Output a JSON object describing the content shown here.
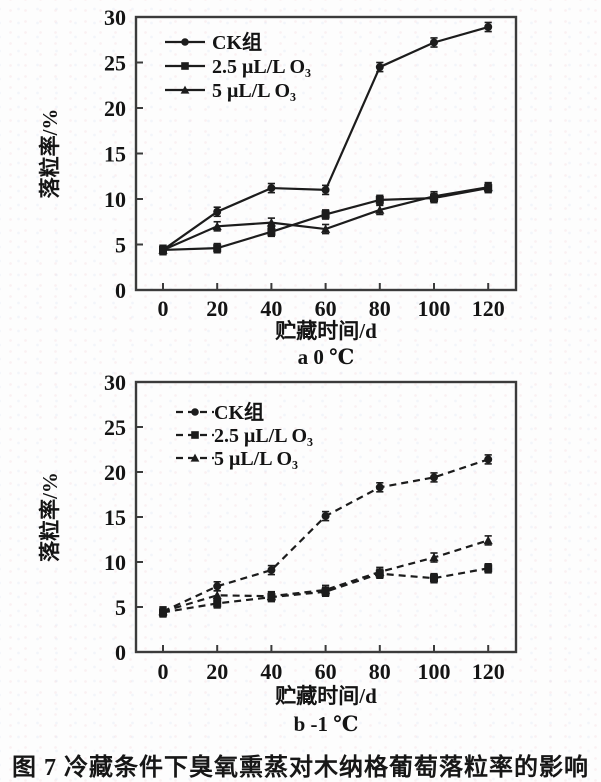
{
  "figure": {
    "caption": "图 7  冷藏条件下臭氧熏蒸对木纳格葡萄落粒率的影响"
  },
  "chart_data": [
    {
      "type": "line",
      "subtitle": "a 0 ℃",
      "xlabel": "贮藏时间/d",
      "ylabel": "落粒率/%",
      "x": [
        0,
        20,
        40,
        60,
        80,
        100,
        120
      ],
      "xticks": [
        0,
        20,
        40,
        60,
        80,
        100,
        120
      ],
      "yticks": [
        0,
        5,
        10,
        15,
        20,
        25,
        30
      ],
      "ylim": [
        0,
        30
      ],
      "grid": false,
      "line_style": "solid",
      "line_color": "#1c1c1c",
      "legend_position": "upper-left-inside",
      "series": [
        {
          "name": "CK组",
          "marker": "circle",
          "values": [
            4.4,
            8.6,
            11.2,
            11.0,
            24.5,
            27.2,
            28.9
          ],
          "error": 0.5
        },
        {
          "name": "2.5 μL/L O₃",
          "marker": "square",
          "values": [
            4.4,
            4.6,
            6.4,
            8.3,
            9.9,
            10.1,
            11.2
          ],
          "error": 0.5
        },
        {
          "name": "5 μL/L O₃",
          "marker": "triangle",
          "values": [
            4.4,
            7.0,
            7.4,
            6.7,
            8.8,
            10.3,
            11.3
          ],
          "error": 0.5
        }
      ]
    },
    {
      "type": "line",
      "subtitle": "b -1 ℃",
      "xlabel": "贮藏时间/d",
      "ylabel": "落粒率/%",
      "x": [
        0,
        20,
        40,
        60,
        80,
        100,
        120
      ],
      "xticks": [
        0,
        20,
        40,
        60,
        80,
        100,
        120
      ],
      "yticks": [
        0,
        5,
        10,
        15,
        20,
        25,
        30
      ],
      "ylim": [
        0,
        30
      ],
      "grid": false,
      "line_style": "dashed",
      "line_color": "#1c1c1c",
      "legend_position": "upper-left-inside",
      "series": [
        {
          "name": "CK组",
          "marker": "circle",
          "values": [
            4.5,
            7.3,
            9.1,
            15.1,
            18.3,
            19.4,
            21.4
          ],
          "error": 0.5
        },
        {
          "name": "2.5 μL/L O₃",
          "marker": "square",
          "values": [
            4.4,
            5.4,
            6.1,
            6.7,
            8.7,
            8.2,
            9.3
          ],
          "error": 0.5
        },
        {
          "name": "5 μL/L O₃",
          "marker": "triangle",
          "values": [
            4.5,
            6.3,
            6.2,
            6.9,
            8.9,
            10.5,
            12.4
          ],
          "error": 0.5
        }
      ]
    }
  ]
}
